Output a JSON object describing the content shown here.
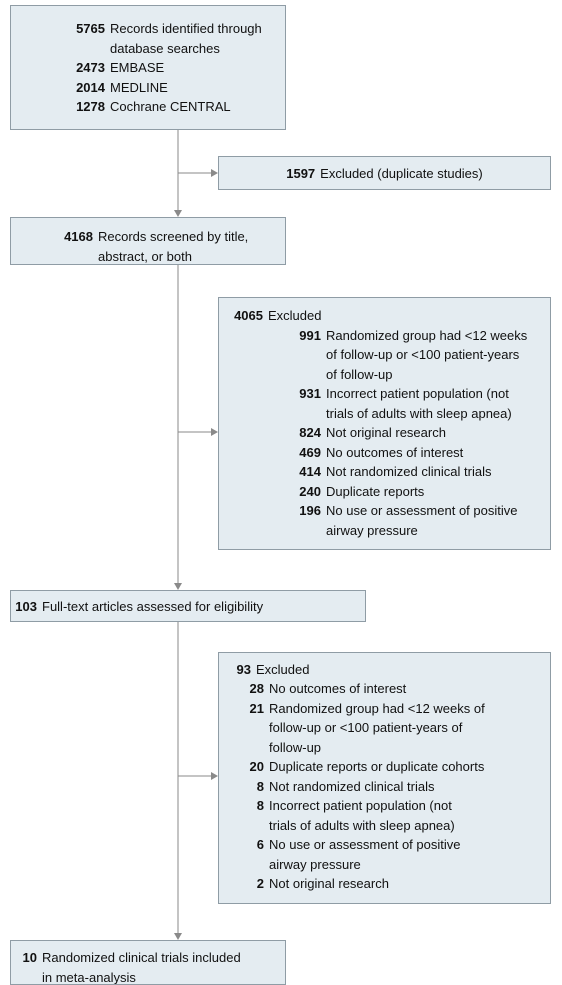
{
  "identified": {
    "count": 5765,
    "lines": [
      "Records identified through",
      "database searches"
    ],
    "sources": [
      {
        "count": 2473,
        "name": "EMBASE"
      },
      {
        "count": 2014,
        "name": "MEDLINE"
      },
      {
        "count": 1278,
        "name": "Cochrane CENTRAL"
      }
    ]
  },
  "duplicates": {
    "count": 1597,
    "lines": [
      "Excluded (duplicate studies)"
    ]
  },
  "screened": {
    "count": 4168,
    "lines": [
      "Records screened by title,",
      "abstract, or both"
    ]
  },
  "screen_excluded": {
    "count": 4065,
    "lines": [
      "Excluded"
    ],
    "reasons": [
      {
        "count": 991,
        "lines": [
          "Randomized group had <12 weeks",
          "of follow-up or <100 patient-years",
          "of follow-up"
        ]
      },
      {
        "count": 931,
        "lines": [
          "Incorrect patient population (not",
          "trials of adults with sleep apnea)"
        ]
      },
      {
        "count": 824,
        "lines": [
          "Not original research"
        ]
      },
      {
        "count": 469,
        "lines": [
          "No outcomes of interest"
        ]
      },
      {
        "count": 414,
        "lines": [
          "Not randomized clinical trials"
        ]
      },
      {
        "count": 240,
        "lines": [
          "Duplicate reports"
        ]
      },
      {
        "count": 196,
        "lines": [
          "No use or assessment of positive",
          "airway pressure"
        ]
      }
    ]
  },
  "full_text": {
    "count": 103,
    "lines": [
      "Full-text articles assessed for eligibility"
    ]
  },
  "full_text_excluded": {
    "count": 93,
    "lines": [
      "Excluded"
    ],
    "reasons": [
      {
        "count": 28,
        "lines": [
          "No outcomes of interest"
        ]
      },
      {
        "count": 21,
        "lines": [
          "Randomized group had <12 weeks of",
          "follow-up or <100 patient-years of",
          "follow-up"
        ]
      },
      {
        "count": 20,
        "lines": [
          "Duplicate reports or duplicate cohorts"
        ]
      },
      {
        "count": 8,
        "lines": [
          "Not randomized clinical trials"
        ]
      },
      {
        "count": 8,
        "lines": [
          "Incorrect patient population (not",
          "trials of adults with sleep apnea)"
        ]
      },
      {
        "count": 6,
        "lines": [
          "No use or assessment of positive",
          "airway pressure"
        ]
      },
      {
        "count": 2,
        "lines": [
          "Not original research"
        ]
      }
    ]
  },
  "included": {
    "count": 10,
    "lines": [
      "Randomized clinical trials included",
      "in meta-analysis"
    ]
  }
}
